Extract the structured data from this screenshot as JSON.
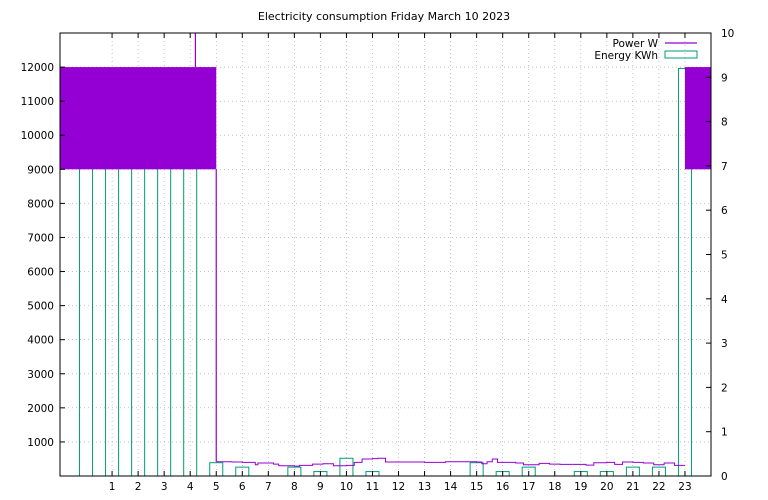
{
  "chart_data": {
    "type": "bar",
    "title": "Electricity consumption Friday March 10 2023",
    "x": {
      "range": [
        -1,
        24
      ],
      "ticks": [
        1,
        2,
        3,
        4,
        5,
        6,
        7,
        8,
        9,
        10,
        11,
        12,
        13,
        14,
        15,
        16,
        17,
        18,
        19,
        20,
        21,
        22,
        23
      ],
      "tick_labels": [
        "1",
        "2",
        "3",
        "4",
        "5",
        "6",
        "7",
        "8",
        "9",
        "10",
        "11",
        "12",
        "13",
        "14",
        "15",
        "16",
        "17",
        "18",
        "19",
        "20",
        "21",
        "22",
        "23"
      ]
    },
    "y_left": {
      "range": [
        0,
        13000
      ],
      "ticks": [
        1000,
        2000,
        3000,
        4000,
        5000,
        6000,
        7000,
        8000,
        9000,
        10000,
        11000,
        12000
      ],
      "tick_labels": [
        "1000",
        "2000",
        "3000",
        "4000",
        "5000",
        "6000",
        "7000",
        "8000",
        "9000",
        "10000",
        "11000",
        "12000"
      ]
    },
    "y_right": {
      "range": [
        0,
        10
      ],
      "ticks": [
        0,
        1,
        2,
        3,
        4,
        5,
        6,
        7,
        8,
        9,
        10
      ],
      "tick_labels": [
        "0",
        "1",
        "2",
        "3",
        "4",
        "5",
        "6",
        "7",
        "8",
        "9",
        "10"
      ]
    },
    "grid": true,
    "legend_position": "top-right",
    "legend": [
      {
        "label": "Power W",
        "color": "#9400d3",
        "kind": "line"
      },
      {
        "label": "Energy KWh",
        "color": "#009e73",
        "kind": "box"
      }
    ],
    "series": [
      {
        "name": "Energy KWh",
        "axis": "right",
        "kind": "bars",
        "color": "#009e73",
        "hours": [
          0,
          1,
          2,
          3,
          4,
          5,
          6,
          7,
          8,
          9,
          10,
          11,
          12,
          13,
          14,
          15,
          16,
          17,
          18,
          19,
          20,
          21,
          22,
          23
        ],
        "values": [
          9.2,
          9.1,
          9.1,
          9.0,
          9.2,
          0.3,
          0.2,
          0.0,
          0.2,
          0.1,
          0.4,
          0.1,
          0.0,
          0.0,
          0.0,
          0.3,
          0.1,
          0.2,
          0.0,
          0.1,
          0.1,
          0.2,
          0.2,
          9.2
        ]
      },
      {
        "name": "Power W",
        "axis": "left",
        "kind": "line",
        "color": "#9400d3",
        "band_low": 9000,
        "band_high": 12000,
        "band_segments": [
          [
            -1,
            5.0
          ],
          [
            23.0,
            24
          ]
        ],
        "spike": {
          "x": 4.2,
          "from": 12000,
          "to": 13000
        },
        "drop": {
          "x": 5.0,
          "from": 9000,
          "to": 420
        },
        "points": [
          [
            5.0,
            420
          ],
          [
            5.6,
            410
          ],
          [
            6.0,
            400
          ],
          [
            6.5,
            330
          ],
          [
            6.6,
            380
          ],
          [
            7.2,
            350
          ],
          [
            7.4,
            300
          ],
          [
            8.0,
            290
          ],
          [
            8.2,
            310
          ],
          [
            8.7,
            350
          ],
          [
            9.1,
            360
          ],
          [
            9.5,
            300
          ],
          [
            10.0,
            310
          ],
          [
            10.3,
            400
          ],
          [
            10.6,
            500
          ],
          [
            11.0,
            510
          ],
          [
            11.2,
            520
          ],
          [
            11.5,
            410
          ],
          [
            12.0,
            410
          ],
          [
            13.0,
            400
          ],
          [
            13.8,
            420
          ],
          [
            14.5,
            420
          ],
          [
            15.0,
            410
          ],
          [
            15.2,
            360
          ],
          [
            15.4,
            420
          ],
          [
            15.6,
            500
          ],
          [
            15.8,
            400
          ],
          [
            16.5,
            380
          ],
          [
            16.8,
            330
          ],
          [
            17.2,
            330
          ],
          [
            17.4,
            370
          ],
          [
            17.8,
            350
          ],
          [
            18.2,
            340
          ],
          [
            18.8,
            340
          ],
          [
            19.2,
            320
          ],
          [
            19.5,
            390
          ],
          [
            20.0,
            400
          ],
          [
            20.3,
            340
          ],
          [
            20.6,
            410
          ],
          [
            21.0,
            400
          ],
          [
            21.4,
            380
          ],
          [
            21.8,
            330
          ],
          [
            22.2,
            380
          ],
          [
            22.6,
            310
          ],
          [
            23.0,
            310
          ]
        ]
      }
    ]
  }
}
